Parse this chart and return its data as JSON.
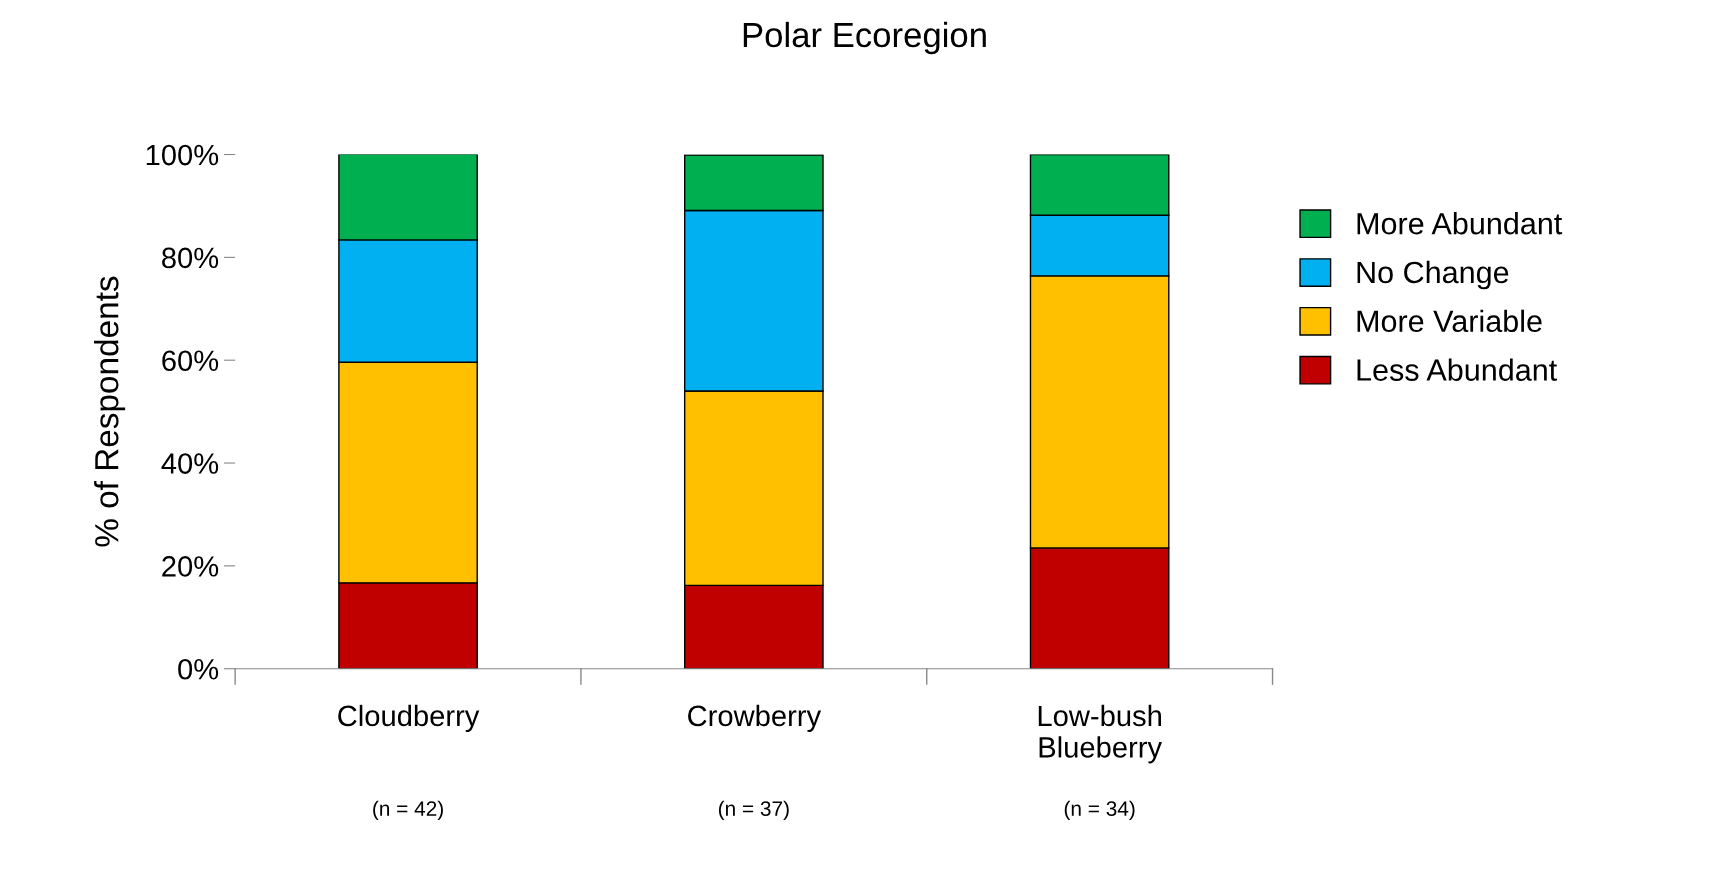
{
  "chart_data": {
    "type": "bar",
    "title": "Polar Ecoregion",
    "ylabel": "% of Respondents",
    "stacked": true,
    "categories": [
      "Cloudberry",
      "Crowberry",
      "Low-bush\nBlueberry"
    ],
    "series": [
      {
        "name": "Less Abundant",
        "color": "#c00000",
        "values": [
          16.7,
          16.2,
          23.5
        ]
      },
      {
        "name": "More Variable",
        "color": "#ffc000",
        "values": [
          42.9,
          37.8,
          52.9
        ]
      },
      {
        "name": "No Change",
        "color": "#00b0f0",
        "values": [
          23.8,
          35.1,
          11.8
        ]
      },
      {
        "name": "More Abundant",
        "color": "#00b050",
        "values": [
          16.7,
          10.8,
          11.8
        ]
      }
    ],
    "ylim": [
      0,
      100
    ],
    "yticks": [
      {
        "value": 0,
        "label": "0%"
      },
      {
        "value": 20,
        "label": "20%"
      },
      {
        "value": 40,
        "label": "40%"
      },
      {
        "value": 60,
        "label": "60%"
      },
      {
        "value": 80,
        "label": "80%"
      },
      {
        "value": 100,
        "label": "100%"
      }
    ],
    "grid": false,
    "legend": "right",
    "annotations": [
      "(n = 42)",
      "(n = 37)",
      "(n = 34)"
    ]
  }
}
